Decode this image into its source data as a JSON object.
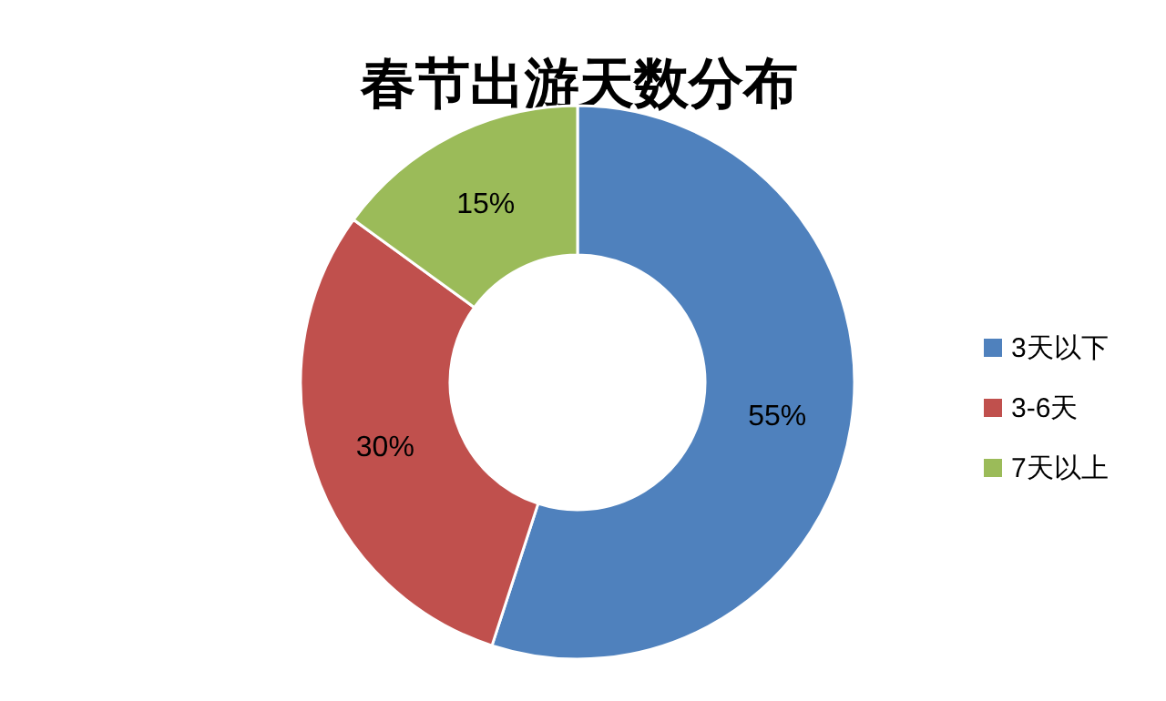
{
  "chart_data": {
    "type": "donut",
    "title": "春节出游天数分布",
    "categories": [
      "3天以下",
      "3-6天",
      "7天以上"
    ],
    "values": [
      55,
      30,
      15
    ],
    "colors": [
      "#4f81bd",
      "#c0504d",
      "#9bbb59"
    ],
    "value_labels": [
      "55%",
      "30%",
      "15%"
    ],
    "legend": "right"
  }
}
